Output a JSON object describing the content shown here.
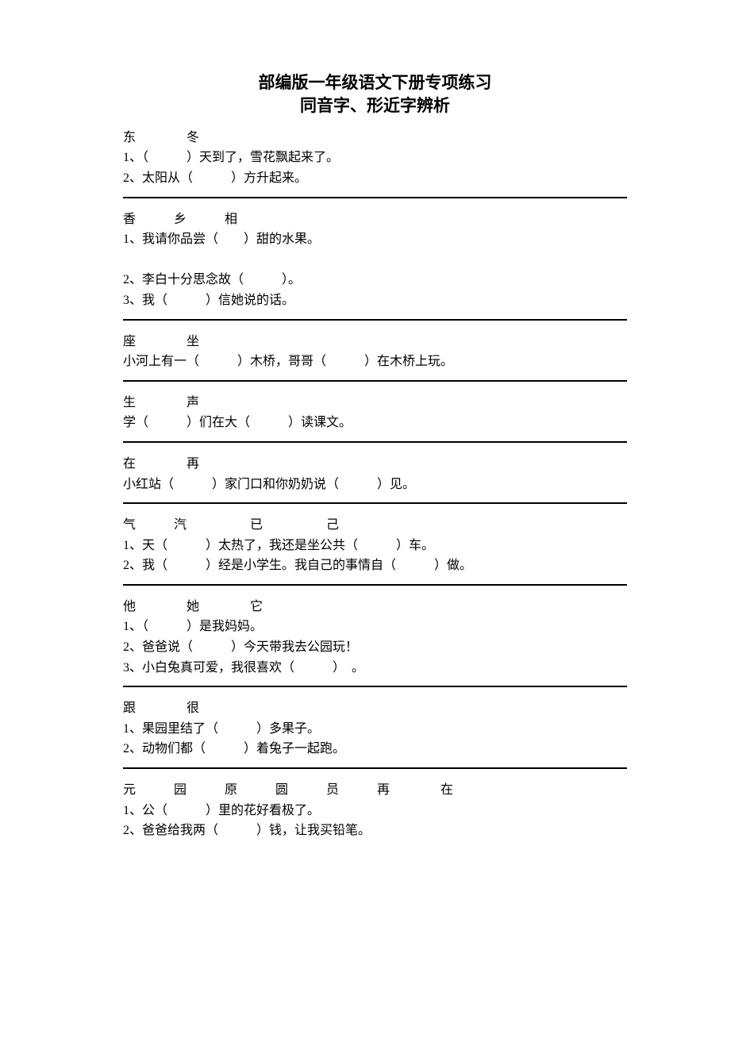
{
  "title_line1": "部编版一年级语文下册专项练习",
  "title_line2": "同音字、形近字辨析",
  "sections": [
    {
      "chars": "东　　　　冬",
      "lines": [
        "1、（　　　）天到了，雪花飘起来了。",
        "2、太阳从（　　　）方升起来。"
      ]
    },
    {
      "chars": "香　　　乡　　　相",
      "lines": [
        "1、我请你品尝（　　）甜的水果。",
        "",
        "2、李白十分思念故（　　　）。",
        "3、我（　　　）信她说的话。"
      ]
    },
    {
      "chars": "座　　　　坐",
      "lines": [
        "小河上有一（　　　）木桥，哥哥（　　　）在木桥上玩。"
      ]
    },
    {
      "chars": "生　　　　声",
      "lines": [
        "学（　　　）们在大（　　　）读课文。"
      ]
    },
    {
      "chars": "在　　　　再",
      "lines": [
        "小红站（　　　）家门口和你奶奶说（　　　）见。"
      ]
    },
    {
      "chars": "气　　　汽　　　　　已　　　　　己",
      "lines": [
        "1、天（　　　）太热了，我还是坐公共（　　　）车。",
        "2、我（　　　）经是小学生。我自己的事情自（　　　）做。"
      ]
    },
    {
      "chars": "他　　　　她　　　　它",
      "lines": [
        "1、（　　　）是我妈妈。",
        "2、爸爸说（　　　）今天带我去公园玩！",
        "3、小白兔真可爱，我很喜欢（　　　）　。"
      ]
    },
    {
      "chars": "跟　　　　很",
      "lines": [
        "1、果园里结了（　　　）多果子。",
        "2、动物们都（　　　）着兔子一起跑。"
      ]
    },
    {
      "chars": "元　　　园　　　原　　　圆　　　员　　　再　　　　在",
      "lines": [
        "1、公（　　　）里的花好看极了。",
        "2、爸爸给我两（　　　）钱，让我买铅笔。"
      ]
    }
  ],
  "colors": {
    "background": "#ffffff",
    "text": "#000000",
    "divider": "#000000"
  },
  "typography": {
    "title_fontsize": 21,
    "body_fontsize": 16,
    "font_family": "SimSun"
  }
}
